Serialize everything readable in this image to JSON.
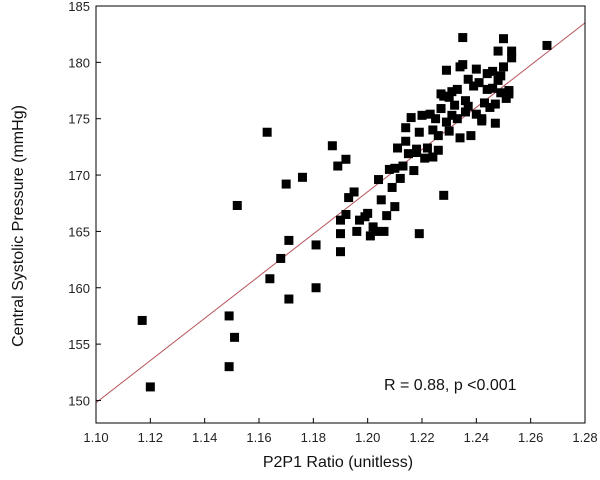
{
  "chart_data": {
    "type": "scatter",
    "title": "",
    "xlabel": "P2P1 Ratio (unitless)",
    "ylabel": "Central Systolic Pressure (mmHg)",
    "xlim": [
      1.1,
      1.28
    ],
    "ylim": [
      148,
      185
    ],
    "x_ticks": [
      "1.10",
      "1.12",
      "1.14",
      "1.16",
      "1.18",
      "1.20",
      "1.22",
      "1.24",
      "1.26",
      "1.28"
    ],
    "y_ticks": [
      "150",
      "155",
      "160",
      "165",
      "170",
      "175",
      "180",
      "185"
    ],
    "grid": false,
    "legend": "none",
    "annotation": "R = 0.88, p <0.001",
    "marker_color": "#000000",
    "fit_line": {
      "color": "#b5525a",
      "x": [
        1.1,
        1.28
      ],
      "y": [
        149.8,
        183.5
      ]
    },
    "points": [
      [
        1.117,
        157.1
      ],
      [
        1.12,
        151.2
      ],
      [
        1.149,
        157.5
      ],
      [
        1.149,
        153.0
      ],
      [
        1.151,
        155.6
      ],
      [
        1.152,
        167.3
      ],
      [
        1.163,
        173.8
      ],
      [
        1.164,
        160.8
      ],
      [
        1.168,
        162.6
      ],
      [
        1.17,
        169.2
      ],
      [
        1.171,
        164.2
      ],
      [
        1.171,
        159.0
      ],
      [
        1.176,
        169.8
      ],
      [
        1.181,
        163.8
      ],
      [
        1.181,
        160.0
      ],
      [
        1.187,
        172.6
      ],
      [
        1.189,
        170.8
      ],
      [
        1.19,
        166.0
      ],
      [
        1.19,
        164.8
      ],
      [
        1.19,
        163.2
      ],
      [
        1.192,
        171.4
      ],
      [
        1.192,
        166.5
      ],
      [
        1.193,
        168.0
      ],
      [
        1.195,
        168.5
      ],
      [
        1.196,
        165.0
      ],
      [
        1.197,
        166.0
      ],
      [
        1.199,
        166.3
      ],
      [
        1.2,
        166.6
      ],
      [
        1.201,
        164.6
      ],
      [
        1.202,
        165.4
      ],
      [
        1.203,
        165.0
      ],
      [
        1.204,
        169.6
      ],
      [
        1.205,
        167.8
      ],
      [
        1.206,
        165.0
      ],
      [
        1.207,
        166.4
      ],
      [
        1.208,
        170.5
      ],
      [
        1.209,
        168.9
      ],
      [
        1.21,
        167.2
      ],
      [
        1.21,
        170.6
      ],
      [
        1.211,
        172.4
      ],
      [
        1.212,
        169.7
      ],
      [
        1.213,
        170.8
      ],
      [
        1.214,
        173.0
      ],
      [
        1.215,
        171.9
      ],
      [
        1.216,
        175.1
      ],
      [
        1.217,
        170.4
      ],
      [
        1.218,
        172.3
      ],
      [
        1.218,
        172.0
      ],
      [
        1.219,
        173.8
      ],
      [
        1.22,
        175.3
      ],
      [
        1.221,
        171.5
      ],
      [
        1.222,
        172.4
      ],
      [
        1.223,
        175.4
      ],
      [
        1.224,
        174.0
      ],
      [
        1.224,
        171.6
      ],
      [
        1.225,
        175.0
      ],
      [
        1.226,
        173.5
      ],
      [
        1.226,
        172.2
      ],
      [
        1.227,
        175.9
      ],
      [
        1.227,
        177.2
      ],
      [
        1.228,
        168.2
      ],
      [
        1.228,
        177.0
      ],
      [
        1.229,
        179.3
      ],
      [
        1.229,
        174.7
      ],
      [
        1.23,
        176.9
      ],
      [
        1.23,
        173.9
      ],
      [
        1.231,
        175.3
      ],
      [
        1.231,
        177.4
      ],
      [
        1.232,
        176.2
      ],
      [
        1.233,
        177.6
      ],
      [
        1.233,
        175.0
      ],
      [
        1.234,
        179.6
      ],
      [
        1.234,
        173.3
      ],
      [
        1.235,
        182.2
      ],
      [
        1.235,
        179.8
      ],
      [
        1.236,
        176.6
      ],
      [
        1.236,
        175.6
      ],
      [
        1.237,
        178.5
      ],
      [
        1.237,
        176.1
      ],
      [
        1.238,
        173.5
      ],
      [
        1.239,
        177.9
      ],
      [
        1.24,
        175.4
      ],
      [
        1.24,
        179.4
      ],
      [
        1.241,
        178.2
      ],
      [
        1.242,
        175.0
      ],
      [
        1.242,
        174.8
      ],
      [
        1.243,
        176.4
      ],
      [
        1.244,
        177.6
      ],
      [
        1.244,
        179.0
      ],
      [
        1.245,
        176.0
      ],
      [
        1.246,
        177.7
      ],
      [
        1.246,
        179.2
      ],
      [
        1.247,
        174.6
      ],
      [
        1.247,
        176.3
      ],
      [
        1.248,
        181.0
      ],
      [
        1.248,
        178.4
      ],
      [
        1.249,
        178.8
      ],
      [
        1.249,
        177.3
      ],
      [
        1.25,
        179.6
      ],
      [
        1.25,
        182.1
      ],
      [
        1.251,
        176.8
      ],
      [
        1.252,
        177.5
      ],
      [
        1.252,
        177.2
      ],
      [
        1.253,
        180.4
      ],
      [
        1.253,
        181.0
      ],
      [
        1.266,
        181.5
      ],
      [
        1.219,
        164.8
      ],
      [
        1.214,
        174.2
      ]
    ]
  }
}
